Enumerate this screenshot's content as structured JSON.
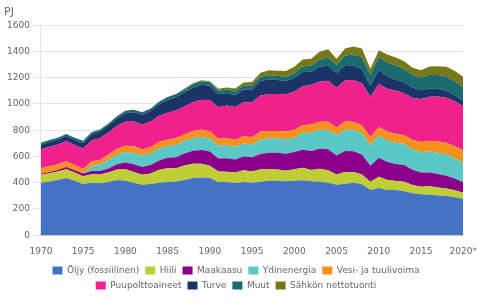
{
  "chart_data": {
    "type": "area",
    "title": "PJ",
    "stacked": true,
    "grid": "y",
    "legend": "bottom",
    "xlim": [
      1970,
      2020
    ],
    "xticks": [
      1970,
      1975,
      1980,
      1985,
      1990,
      1995,
      2000,
      2005,
      2010,
      2015,
      {
        "value": 2020,
        "label": "2020*"
      }
    ],
    "ylim": [
      0,
      1600
    ],
    "yticks": [
      0,
      200,
      400,
      600,
      800,
      1000,
      1200,
      1400,
      1600
    ],
    "x": [
      1970,
      1971,
      1972,
      1973,
      1974,
      1975,
      1976,
      1977,
      1978,
      1979,
      1980,
      1981,
      1982,
      1983,
      1984,
      1985,
      1986,
      1987,
      1988,
      1989,
      1990,
      1991,
      1992,
      1993,
      1994,
      1995,
      1996,
      1997,
      1998,
      1999,
      2000,
      2001,
      2002,
      2003,
      2004,
      2005,
      2006,
      2007,
      2008,
      2009,
      2010,
      2011,
      2012,
      2013,
      2014,
      2015,
      2016,
      2017,
      2018,
      2019,
      2020
    ],
    "series": [
      {
        "name": "Öljy (fossiilinen)",
        "color": "#4472C4",
        "values": [
          400,
          410,
          420,
          435,
          415,
          390,
          400,
          395,
          405,
          420,
          415,
          400,
          385,
          390,
          400,
          405,
          410,
          420,
          435,
          440,
          435,
          405,
          405,
          398,
          405,
          400,
          408,
          415,
          415,
          412,
          415,
          418,
          412,
          408,
          400,
          385,
          392,
          400,
          390,
          345,
          360,
          345,
          345,
          335,
          320,
          312,
          308,
          302,
          298,
          290,
          275
        ]
      },
      {
        "name": "Hiili",
        "color": "#BFCE35",
        "values": [
          60,
          62,
          65,
          68,
          62,
          60,
          65,
          68,
          72,
          80,
          88,
          82,
          75,
          80,
          98,
          105,
          100,
          112,
          110,
          105,
          95,
          80,
          78,
          80,
          90,
          85,
          95,
          90,
          85,
          80,
          88,
          95,
          85,
          98,
          95,
          78,
          90,
          82,
          73,
          62,
          85,
          75,
          68,
          72,
          62,
          57,
          65,
          62,
          57,
          52,
          48
        ]
      },
      {
        "name": "Maakaasu",
        "color": "#8B008B",
        "values": [
          8,
          9,
          12,
          16,
          18,
          20,
          24,
          26,
          32,
          40,
          50,
          58,
          60,
          64,
          72,
          80,
          84,
          90,
          98,
          105,
          108,
          100,
          104,
          98,
          105,
          108,
          116,
          123,
          128,
          128,
          130,
          138,
          145,
          152,
          160,
          145,
          160,
          157,
          152,
          123,
          145,
          138,
          130,
          128,
          116,
          108,
          104,
          102,
          98,
          90,
          80
        ]
      },
      {
        "name": "Ydinenergia",
        "color": "#5BC8C8",
        "values": [
          0,
          0,
          0,
          0,
          0,
          0,
          35,
          50,
          65,
          72,
          80,
          85,
          88,
          90,
          90,
          90,
          95,
          98,
          98,
          98,
          98,
          98,
          98,
          98,
          98,
          98,
          110,
          110,
          110,
          110,
          110,
          130,
          138,
          145,
          145,
          155,
          162,
          162,
          162,
          158,
          170,
          162,
          162,
          162,
          155,
          155,
          160,
          162,
          162,
          155,
          148
        ]
      },
      {
        "name": "Vesi- ja tuulivoima",
        "color": "#F5921E",
        "values": [
          42,
          45,
          42,
          45,
          40,
          36,
          38,
          36,
          40,
          45,
          48,
          52,
          45,
          48,
          52,
          48,
          52,
          48,
          52,
          56,
          56,
          52,
          56,
          52,
          56,
          56,
          61,
          56,
          56,
          61,
          61,
          56,
          64,
          61,
          64,
          56,
          64,
          61,
          61,
          61,
          64,
          68,
          68,
          64,
          72,
          78,
          82,
          85,
          90,
          90,
          95
        ]
      },
      {
        "name": "Puupolttoaineet",
        "color": "#F0218A",
        "values": [
          145,
          148,
          150,
          153,
          153,
          155,
          160,
          165,
          168,
          175,
          183,
          190,
          190,
          195,
          198,
          205,
          210,
          213,
          220,
          228,
          236,
          240,
          247,
          251,
          259,
          266,
          274,
          282,
          282,
          282,
          290,
          297,
          302,
          305,
          312,
          305,
          312,
          320,
          320,
          305,
          328,
          328,
          328,
          320,
          320,
          328,
          336,
          343,
          343,
          343,
          336
        ]
      },
      {
        "name": "Turve",
        "color": "#1A3468",
        "values": [
          35,
          36,
          38,
          38,
          38,
          42,
          47,
          50,
          54,
          58,
          66,
          70,
          75,
          80,
          90,
          98,
          102,
          106,
          110,
          114,
          110,
          98,
          95,
          90,
          98,
          98,
          110,
          110,
          106,
          100,
          106,
          110,
          100,
          114,
          116,
          110,
          116,
          110,
          106,
          85,
          106,
          95,
          85,
          82,
          78,
          66,
          62,
          57,
          52,
          46,
          40
        ]
      },
      {
        "name": "Muut",
        "color": "#1A6B6E",
        "values": [
          15,
          15,
          16,
          16,
          16,
          16,
          16,
          16,
          16,
          16,
          18,
          18,
          18,
          18,
          18,
          22,
          22,
          22,
          27,
          27,
          27,
          27,
          27,
          27,
          30,
          30,
          33,
          33,
          33,
          33,
          38,
          42,
          46,
          53,
          61,
          64,
          73,
          84,
          91,
          84,
          99,
          104,
          107,
          104,
          99,
          95,
          104,
          107,
          110,
          107,
          104
        ]
      },
      {
        "name": "Sähkön nettotuonti",
        "color": "#787818",
        "values": [
          0,
          0,
          0,
          0,
          0,
          0,
          0,
          0,
          0,
          0,
          0,
          0,
          0,
          0,
          0,
          0,
          0,
          8,
          8,
          8,
          8,
          15,
          15,
          23,
          23,
          27,
          30,
          38,
          38,
          46,
          46,
          53,
          53,
          61,
          64,
          46,
          53,
          61,
          68,
          46,
          53,
          61,
          61,
          58,
          53,
          58,
          64,
          68,
          73,
          79,
          79
        ]
      }
    ]
  }
}
